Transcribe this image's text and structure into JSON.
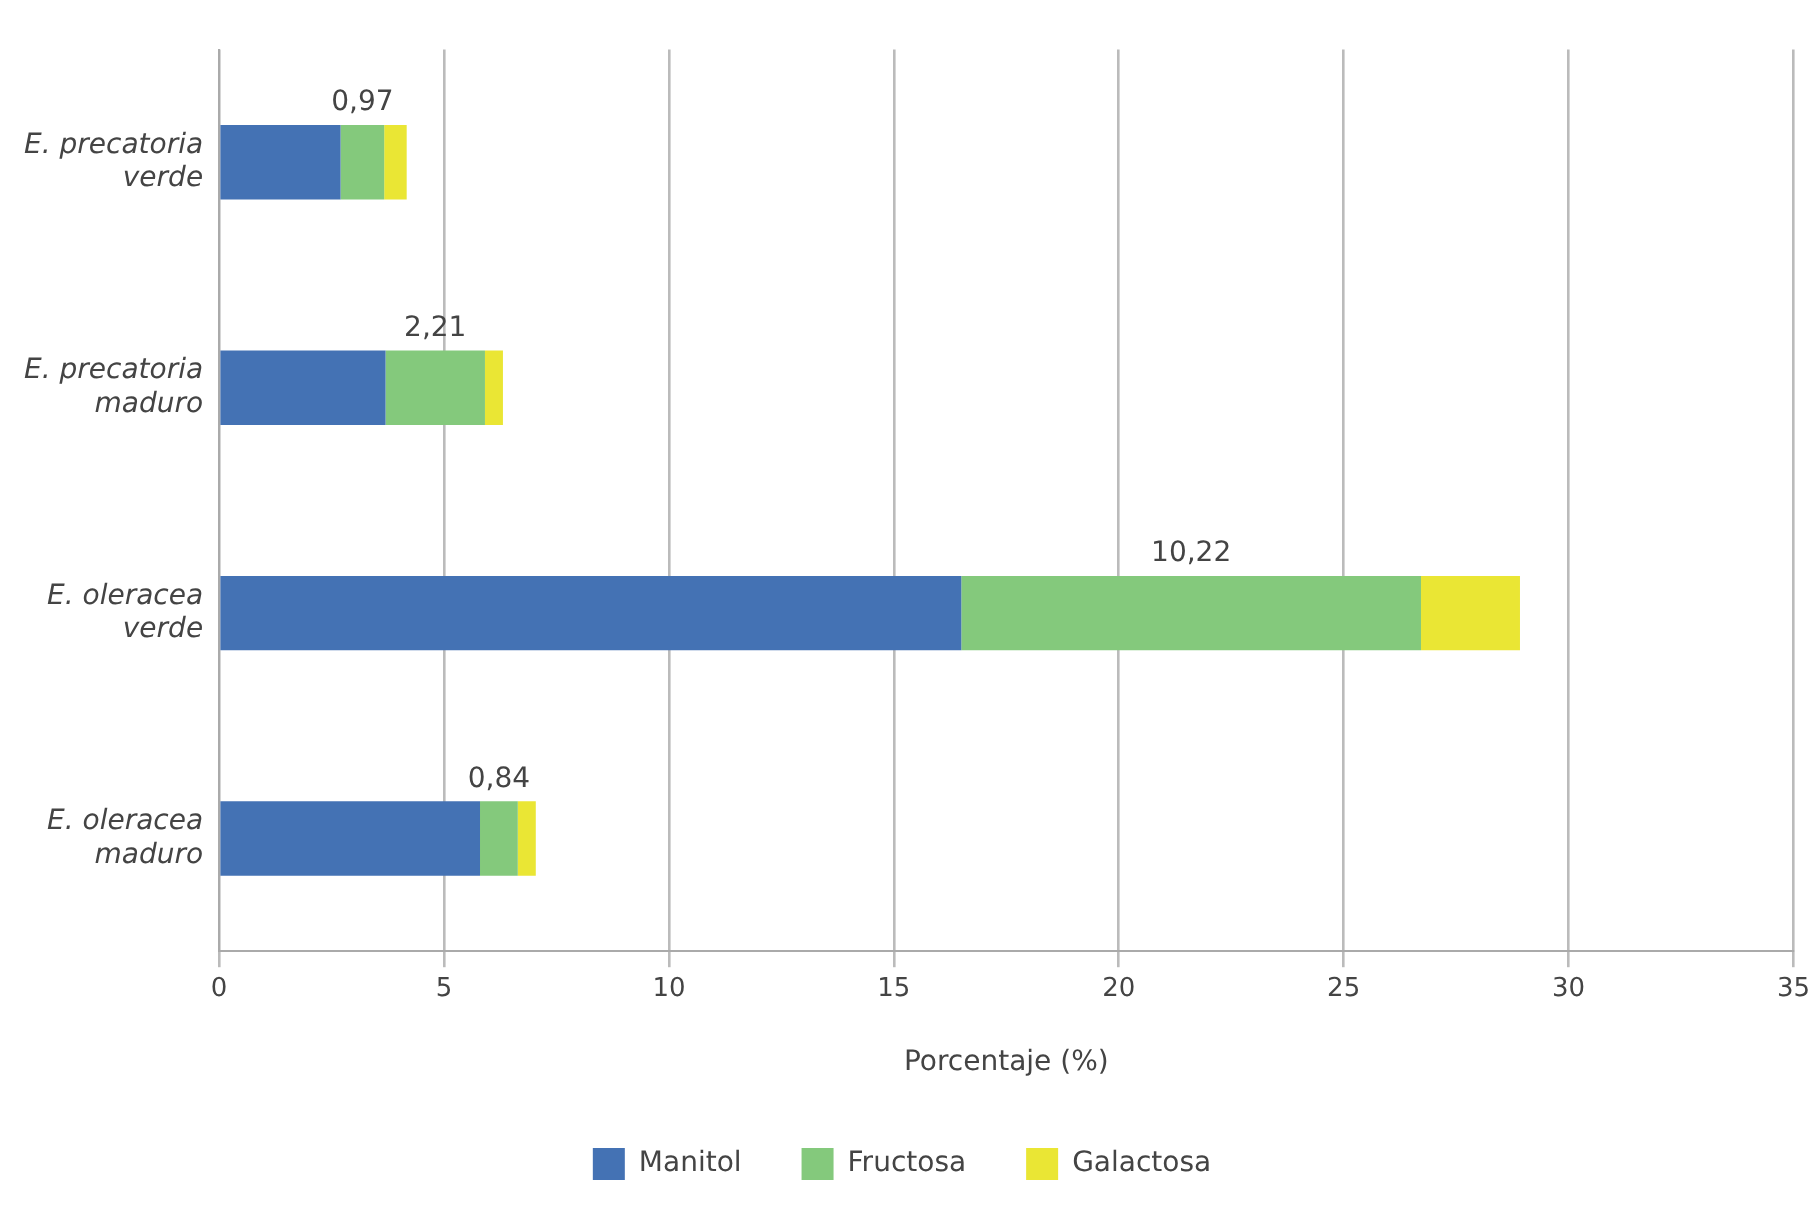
{
  "chart_data": {
    "type": "bar",
    "orientation": "horizontal",
    "stacked": true,
    "categories": [
      "E. precatoria verde",
      "E. precatoria maduro",
      "E. oleracea verde",
      "E. oleracea maduro"
    ],
    "series": [
      {
        "name": "Manitol",
        "color": "#4472b4",
        "values": [
          2.7,
          3.7,
          16.5,
          5.8
        ]
      },
      {
        "name": "Fructosa",
        "color": "#84c97c",
        "values": [
          0.97,
          2.21,
          10.22,
          0.84
        ],
        "value_labels": [
          "0,97",
          "2,21",
          "10,22",
          "0,84"
        ]
      },
      {
        "name": "Galactosa",
        "color": "#eae634",
        "values": [
          0.5,
          0.4,
          2.2,
          0.4
        ]
      }
    ],
    "xlabel": "Porcentaje (%)",
    "xlim": [
      0,
      35
    ],
    "xticks": [
      0,
      5,
      10,
      15,
      20,
      25,
      30,
      35
    ],
    "grid": "x",
    "legend": "bottom"
  }
}
